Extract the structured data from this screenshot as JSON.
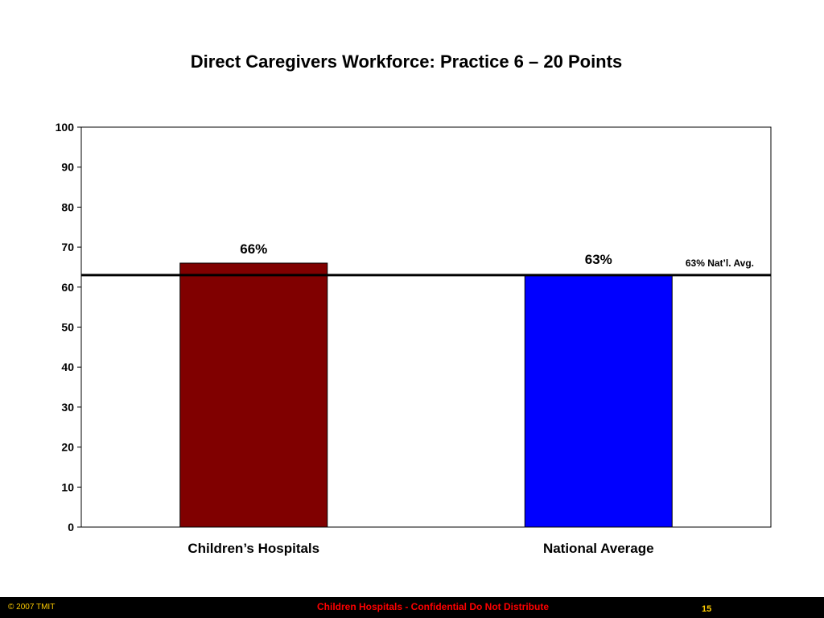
{
  "slide": {
    "title": "Direct Caregivers Workforce: Practice 6 – 20 Points"
  },
  "chart_data": {
    "type": "bar",
    "title": "Direct Caregivers Workforce: Practice 6 – 20 Points",
    "xlabel": "",
    "ylabel": "",
    "ylim": [
      0,
      100
    ],
    "yticks": [
      0,
      10,
      20,
      30,
      40,
      50,
      60,
      70,
      80,
      90,
      100
    ],
    "categories": [
      "Children’s Hospitals",
      "National Average"
    ],
    "values": [
      66,
      63
    ],
    "data_labels": [
      "66%",
      "63%"
    ],
    "bar_colors": [
      "#800000",
      "#0000ff"
    ],
    "grid": false,
    "reference_line": {
      "value": 63,
      "label": "63% Nat’l. Avg.",
      "color": "#000000"
    }
  },
  "footer": {
    "left": "© 2007 TMIT",
    "center": "Children Hospitals - Confidential Do Not Distribute",
    "page_number": "15"
  },
  "colors": {
    "footer_background": "#000000",
    "footer_accent": "#ffcc00",
    "footer_center_text": "#ff0000"
  }
}
